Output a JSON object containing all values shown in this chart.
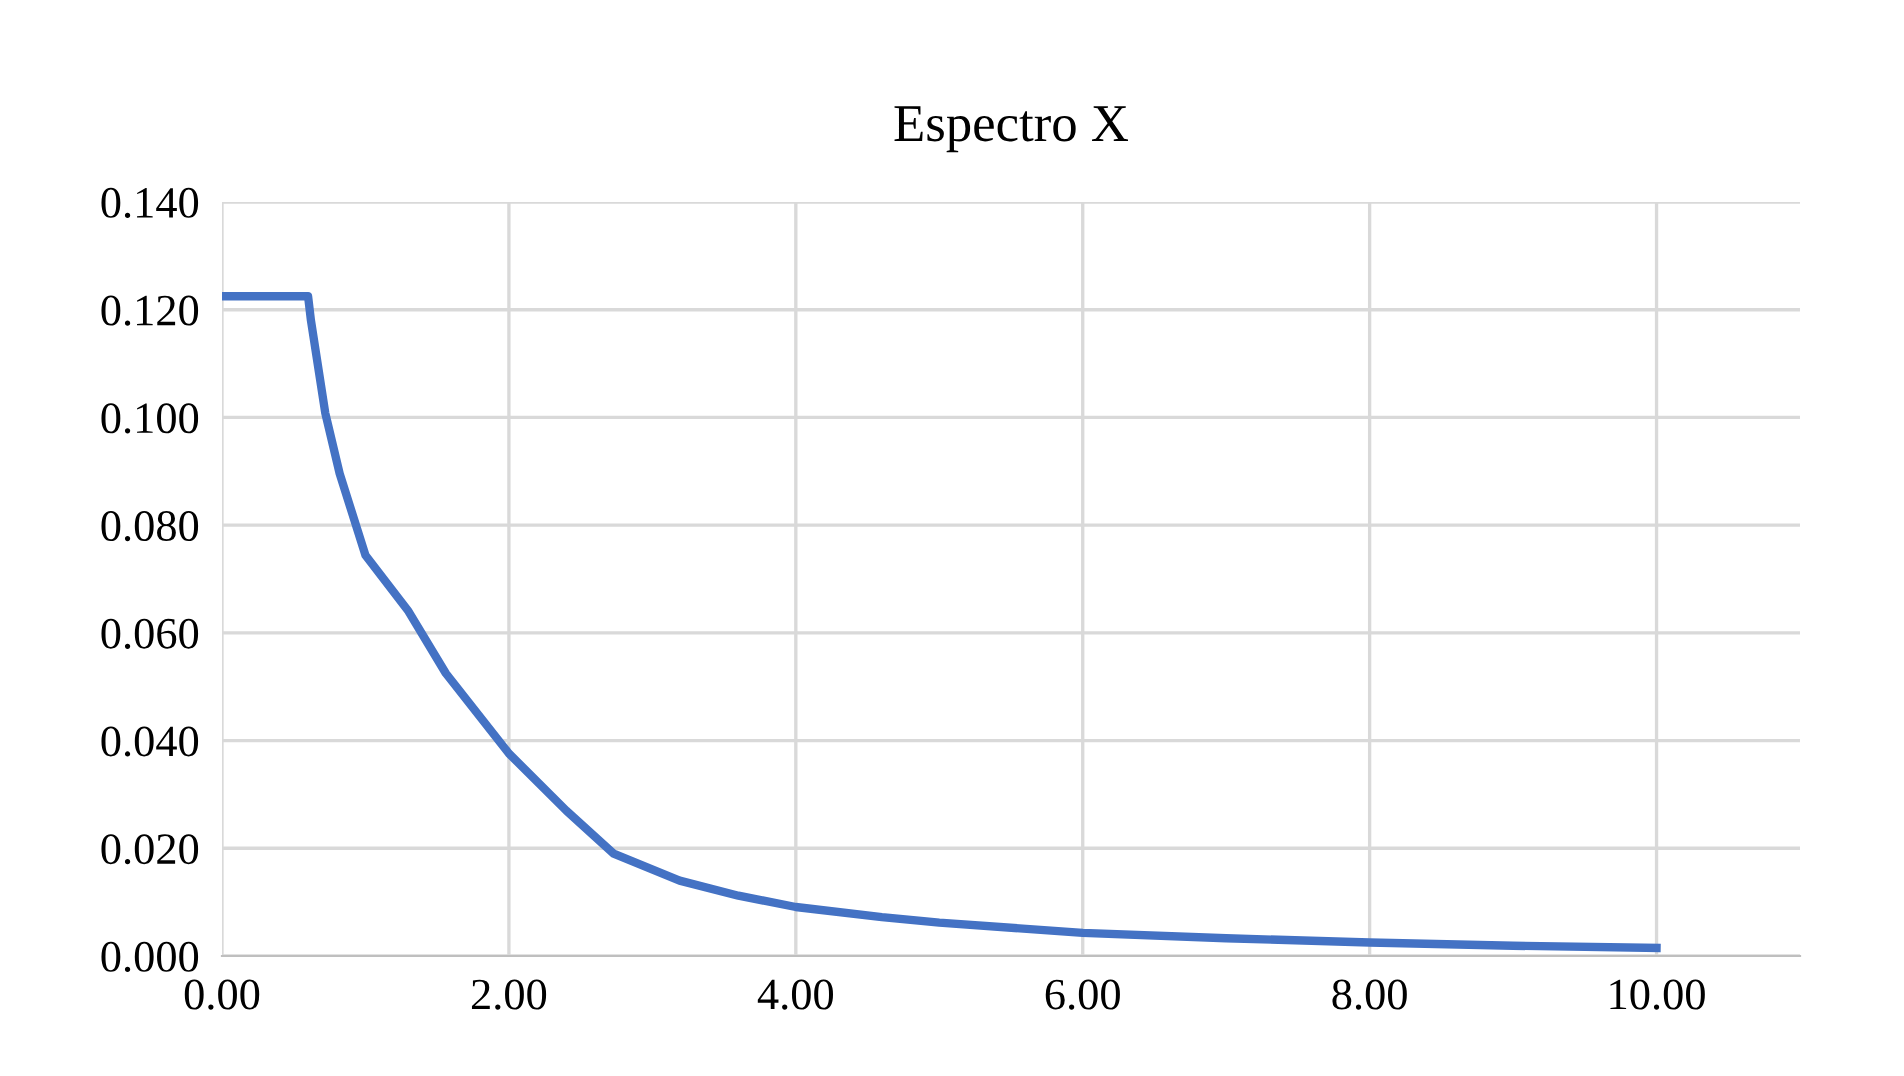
{
  "chart_data": {
    "type": "line",
    "title": "Espectro X",
    "series": [
      {
        "color": "#4472c4",
        "x": [
          0,
          0.3,
          0.6,
          0.62,
          0.72,
          0.82,
          1.0,
          1.3,
          1.56,
          2.0,
          2.4,
          2.73,
          3.19,
          3.6,
          4.0,
          4.6,
          5.0,
          6.0,
          7.0,
          8.0,
          9.0,
          10.0
        ],
        "values": [
          0.1225,
          0.1225,
          0.1225,
          0.118,
          0.1008,
          0.0896,
          0.0744,
          0.064,
          0.0525,
          0.0376,
          0.027,
          0.019,
          0.014,
          0.0112,
          0.0091,
          0.0072,
          0.0062,
          0.0043,
          0.0033,
          0.0025,
          0.0019,
          0.0015
        ]
      }
    ],
    "xlim": [
      0,
      11
    ],
    "xticks": [
      {
        "value": 0,
        "label": "0.00"
      },
      {
        "value": 2,
        "label": "2.00"
      },
      {
        "value": 4,
        "label": "4.00"
      },
      {
        "value": 6,
        "label": "6.00"
      },
      {
        "value": 8,
        "label": "8.00"
      },
      {
        "value": 10,
        "label": "10.00"
      }
    ],
    "ylim": [
      0,
      0.14
    ],
    "yticks": [
      {
        "value": 0,
        "label": "0.000"
      },
      {
        "value": 0.02,
        "label": "0.020"
      },
      {
        "value": 0.04,
        "label": "0.040"
      },
      {
        "value": 0.06,
        "label": "0.060"
      },
      {
        "value": 0.08,
        "label": "0.080"
      },
      {
        "value": 0.1,
        "label": "0.100"
      },
      {
        "value": 0.12,
        "label": "0.120"
      },
      {
        "value": 0.14,
        "label": "0.140"
      }
    ],
    "grid": true,
    "marker": "none",
    "line_style": "solid",
    "legend": false
  }
}
